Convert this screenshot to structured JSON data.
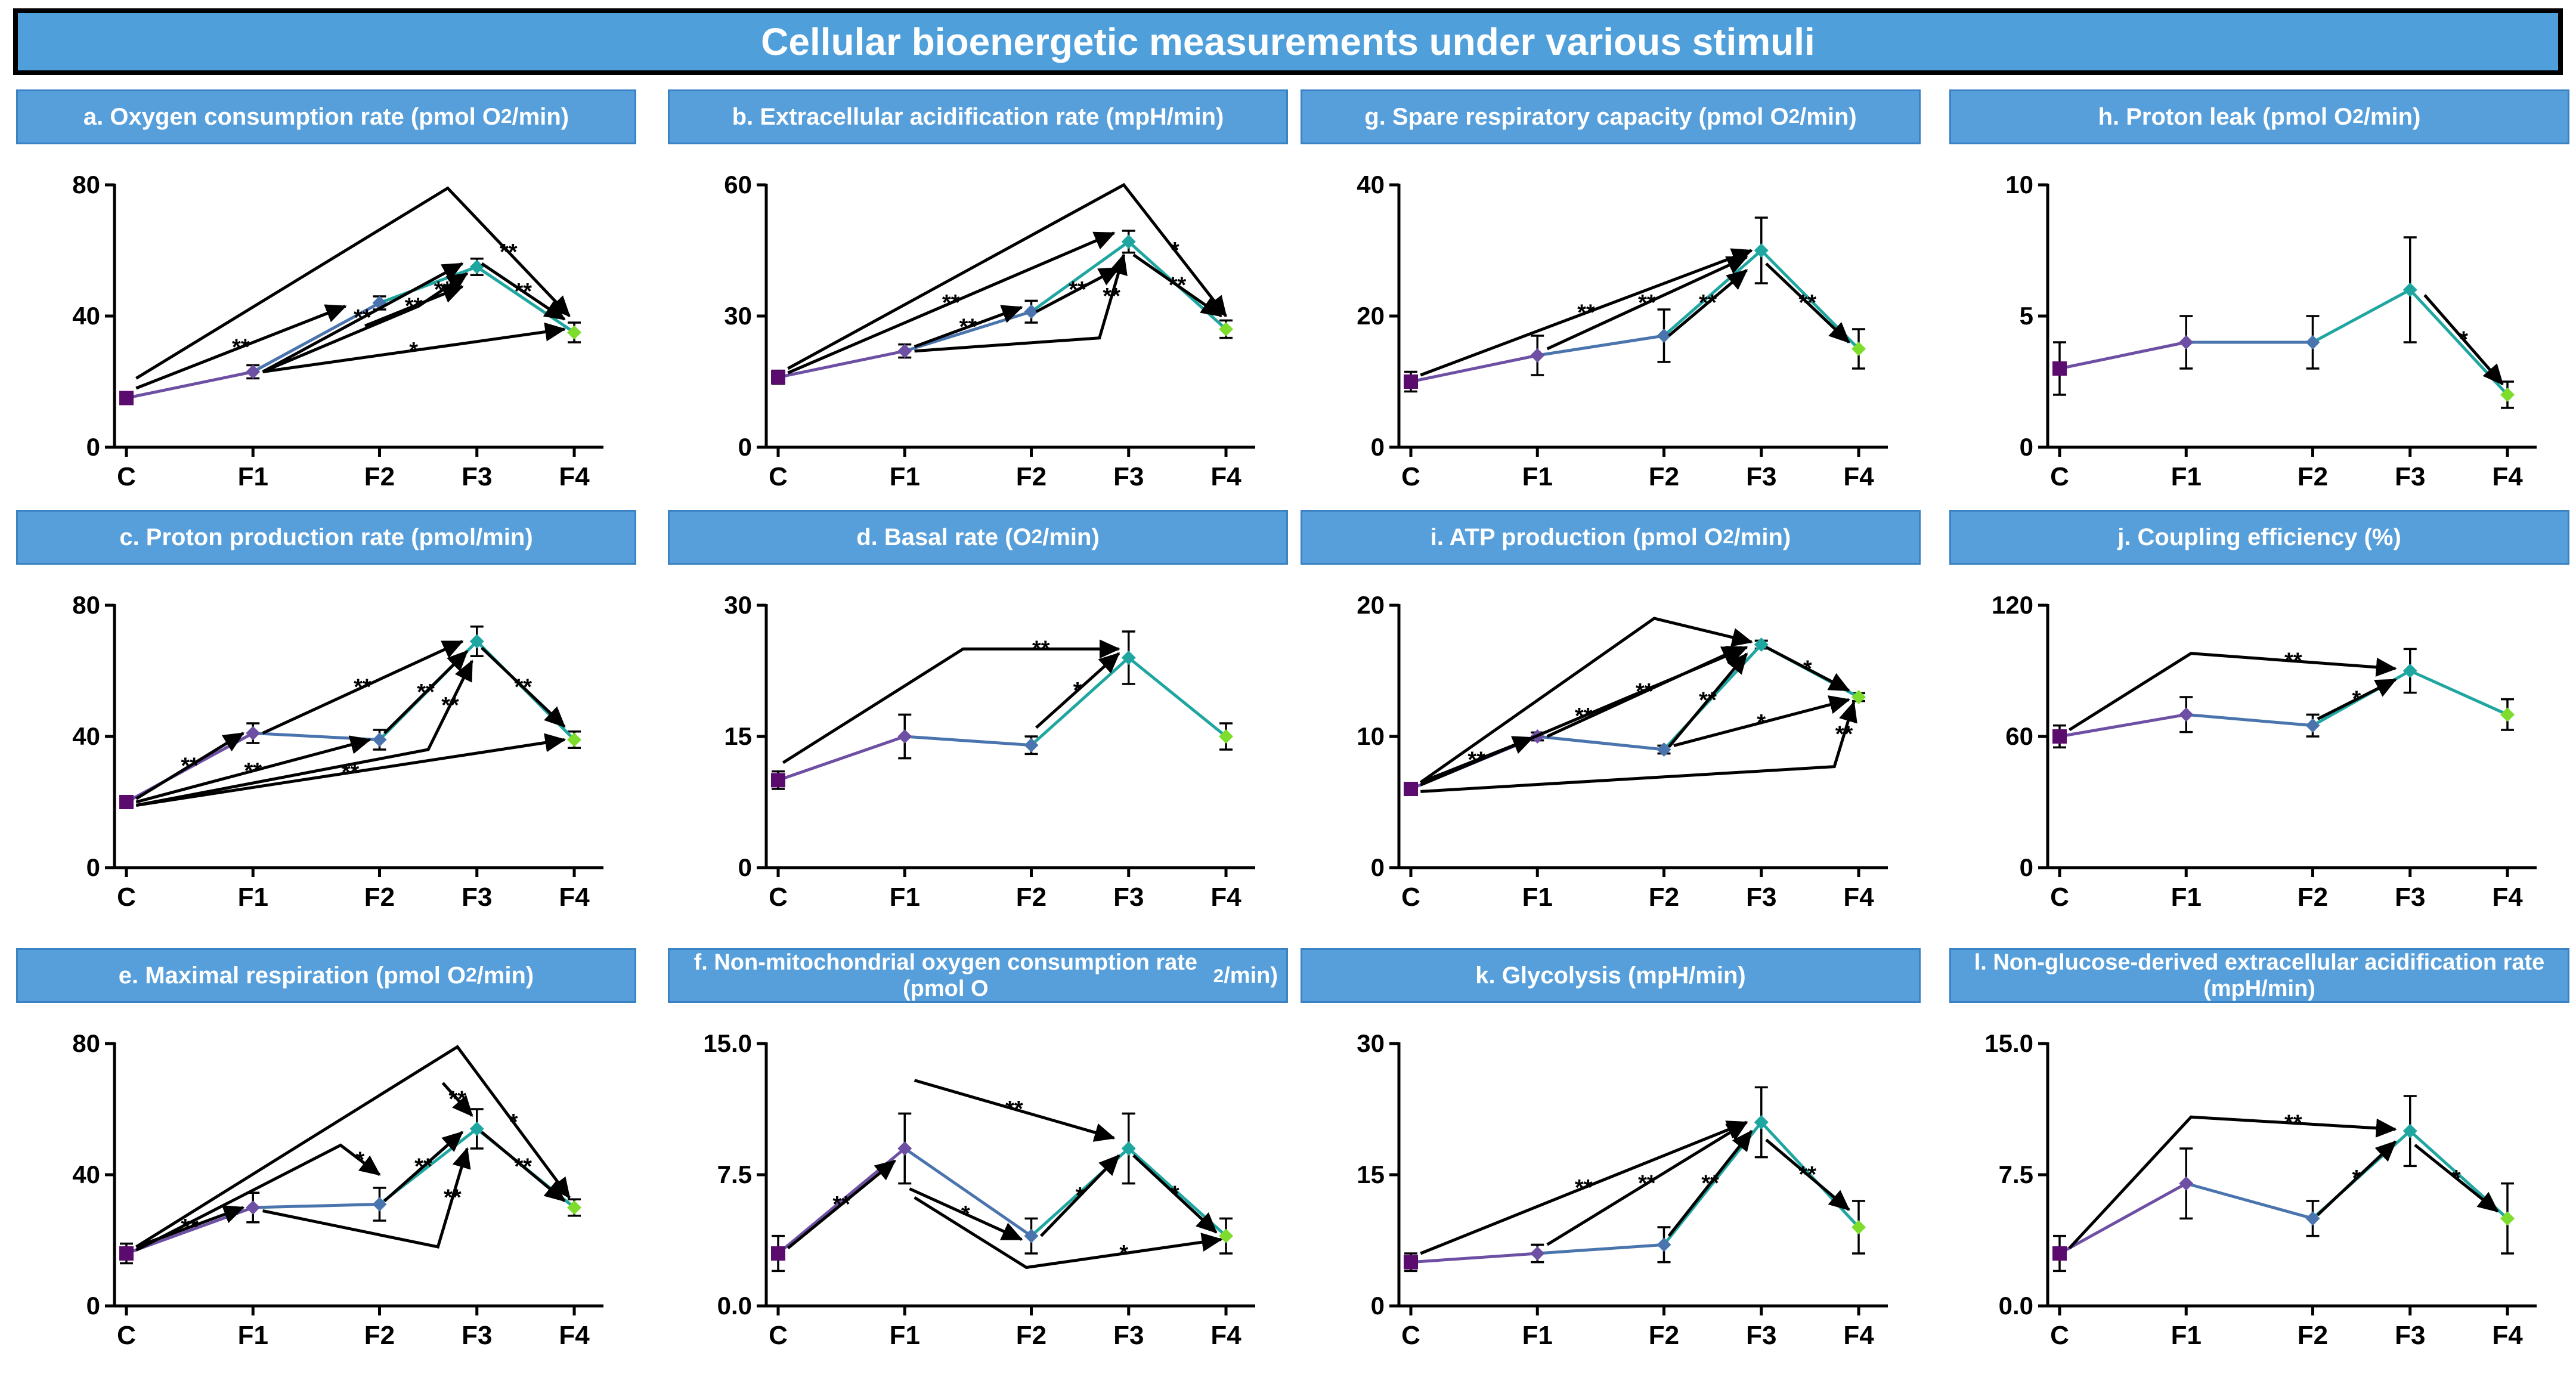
{
  "title": "Cellular bioenergetic measurements under various stimuli",
  "colors": {
    "banner": "#4f9fdb",
    "panel_title": "#569fdb",
    "C": "#5b0a6e",
    "F1": "#6d4fa3",
    "F2": "#4a74ad",
    "F3": "#1fa6a0",
    "F4": "#7ddc2c",
    "arrow": "#000000"
  },
  "chart_data": [
    {
      "id": "a",
      "type": "line",
      "title_html": "a. Oxygen consumption rate (pmol O<sub>2</sub>/min)",
      "categories": [
        "C",
        "F1",
        "F2",
        "F3",
        "F4"
      ],
      "x": [
        0,
        1.3,
        2.6,
        3.6,
        4.6
      ],
      "values": [
        15,
        23,
        44,
        55,
        35
      ],
      "errors": [
        1.5,
        2,
        2,
        2.5,
        3
      ],
      "ylim": [
        0,
        80
      ],
      "yticks": [
        0,
        40,
        80
      ],
      "ytick_labels": [
        "0",
        "40",
        "80"
      ],
      "annotations": [
        {
          "from": [
            0.1,
            21
          ],
          "via": [
            3.3,
            79
          ],
          "to": [
            4.55,
            40
          ],
          "label": "**"
        },
        {
          "from": [
            0.1,
            18
          ],
          "to": [
            2.25,
            43
          ],
          "label": "**"
        },
        {
          "from": [
            1.4,
            23
          ],
          "via": [
            3.0,
            43
          ],
          "to": [
            3.5,
            53
          ],
          "label": "**"
        },
        {
          "from": [
            1.4,
            23
          ],
          "to": [
            3.45,
            56
          ],
          "label": "**"
        },
        {
          "from": [
            1.4,
            23
          ],
          "to": [
            4.5,
            36
          ],
          "label": "*"
        },
        {
          "from": [
            2.45,
            37
          ],
          "to": [
            3.45,
            49
          ],
          "label": "**"
        },
        {
          "from": [
            3.65,
            56
          ],
          "to": [
            4.5,
            39
          ],
          "label": "**"
        }
      ]
    },
    {
      "id": "b",
      "type": "line",
      "title_html": "b. Extracellular acidification rate (mpH/min)",
      "categories": [
        "C",
        "F1",
        "F2",
        "F3",
        "F4"
      ],
      "x": [
        0,
        1.3,
        2.6,
        3.6,
        4.6
      ],
      "values": [
        16,
        22,
        31,
        47,
        27
      ],
      "errors": [
        1.5,
        1.5,
        2.5,
        2.5,
        2
      ],
      "ylim": [
        0,
        60
      ],
      "yticks": [
        0,
        30,
        60
      ],
      "ytick_labels": [
        "0",
        "30",
        "60"
      ],
      "annotations": [
        {
          "from": [
            0.1,
            18
          ],
          "via": [
            3.55,
            60
          ],
          "to": [
            4.6,
            30
          ],
          "label": "*"
        },
        {
          "from": [
            0.1,
            17
          ],
          "to": [
            3.45,
            49
          ],
          "label": "**"
        },
        {
          "from": [
            1.4,
            23
          ],
          "to": [
            2.5,
            32
          ],
          "label": "**"
        },
        {
          "from": [
            1.4,
            22
          ],
          "via": [
            3.3,
            25
          ],
          "to": [
            3.55,
            44
          ],
          "label": "**"
        },
        {
          "from": [
            2.65,
            31
          ],
          "to": [
            3.5,
            41
          ],
          "label": "**"
        },
        {
          "from": [
            3.65,
            44
          ],
          "to": [
            4.55,
            30
          ],
          "label": "**"
        }
      ]
    },
    {
      "id": "g",
      "type": "line",
      "title_html": "g. Spare respiratory capacity (pmol O<sub>2</sub>/min)",
      "categories": [
        "C",
        "F1",
        "F2",
        "F3",
        "F4"
      ],
      "x": [
        0,
        1.3,
        2.6,
        3.6,
        4.6
      ],
      "values": [
        10,
        14,
        17,
        30,
        15
      ],
      "errors": [
        1.5,
        3,
        4,
        5,
        3
      ],
      "ylim": [
        0,
        40
      ],
      "yticks": [
        0,
        20,
        40
      ],
      "ytick_labels": [
        "0",
        "20",
        "40"
      ],
      "annotations": [
        {
          "from": [
            0.1,
            11
          ],
          "to": [
            3.5,
            30
          ],
          "label": "**"
        },
        {
          "from": [
            1.4,
            15
          ],
          "to": [
            3.45,
            29
          ],
          "label": "**"
        },
        {
          "from": [
            2.65,
            17
          ],
          "to": [
            3.45,
            27
          ],
          "label": "**"
        },
        {
          "from": [
            3.65,
            28
          ],
          "to": [
            4.5,
            16
          ],
          "label": "**"
        }
      ]
    },
    {
      "id": "h",
      "type": "line",
      "title_html": "h. Proton leak (pmol O<sub>2</sub>/min)",
      "categories": [
        "C",
        "F1",
        "F2",
        "F3",
        "F4"
      ],
      "x": [
        0,
        1.3,
        2.6,
        3.6,
        4.6
      ],
      "values": [
        3,
        4,
        4,
        6,
        2
      ],
      "errors": [
        1,
        1,
        1,
        2,
        0.5
      ],
      "ylim": [
        0,
        10
      ],
      "yticks": [
        0,
        5,
        10
      ],
      "ytick_labels": [
        "0",
        "5",
        "10"
      ],
      "annotations": [
        {
          "from": [
            3.75,
            5.8
          ],
          "to": [
            4.55,
            2.4
          ],
          "label": "*"
        }
      ]
    },
    {
      "id": "c",
      "type": "line",
      "title_html": "c. Proton production rate (pmol/min)",
      "categories": [
        "C",
        "F1",
        "F2",
        "F3",
        "F4"
      ],
      "x": [
        0,
        1.3,
        2.6,
        3.6,
        4.6
      ],
      "values": [
        20,
        41,
        39,
        69,
        39
      ],
      "errors": [
        1.5,
        3,
        3,
        4.5,
        2.5
      ],
      "ylim": [
        0,
        80
      ],
      "yticks": [
        0,
        40,
        80
      ],
      "ytick_labels": [
        "0",
        "40",
        "80"
      ],
      "annotations": [
        {
          "from": [
            0.1,
            21
          ],
          "to": [
            1.2,
            41
          ],
          "label": "**"
        },
        {
          "from": [
            0.1,
            20
          ],
          "to": [
            2.5,
            39
          ],
          "label": "**"
        },
        {
          "from": [
            0.1,
            19
          ],
          "via": [
            3.1,
            36
          ],
          "to": [
            3.55,
            63
          ],
          "label": "**"
        },
        {
          "from": [
            0.1,
            19
          ],
          "to": [
            4.5,
            39
          ],
          "label": "**"
        },
        {
          "from": [
            1.4,
            41
          ],
          "to": [
            3.45,
            69
          ],
          "label": "**"
        },
        {
          "from": [
            2.65,
            41
          ],
          "to": [
            3.5,
            66
          ],
          "label": "**"
        },
        {
          "from": [
            3.65,
            67
          ],
          "to": [
            4.5,
            43
          ],
          "label": "**"
        }
      ]
    },
    {
      "id": "d",
      "type": "line",
      "title_html": "d. Basal rate (O<sub>2</sub>/min)",
      "categories": [
        "C",
        "F1",
        "F2",
        "F3",
        "F4"
      ],
      "x": [
        0,
        1.3,
        2.6,
        3.6,
        4.6
      ],
      "values": [
        10,
        15,
        14,
        24,
        15
      ],
      "errors": [
        1,
        2.5,
        1,
        3,
        1.5
      ],
      "ylim": [
        0,
        30
      ],
      "yticks": [
        0,
        15,
        30
      ],
      "ytick_labels": [
        "0",
        "15",
        "30"
      ],
      "annotations": [
        {
          "from": [
            0.05,
            12
          ],
          "via": [
            1.9,
            25
          ],
          "to": [
            3.5,
            25
          ],
          "label": "**"
        },
        {
          "from": [
            2.65,
            16
          ],
          "to": [
            3.5,
            24.5
          ],
          "label": "*"
        }
      ]
    },
    {
      "id": "i",
      "type": "line",
      "title_html": "i. ATP production (pmol O<sub>2</sub>/min)",
      "categories": [
        "C",
        "F1",
        "F2",
        "F3",
        "F4"
      ],
      "x": [
        0,
        1.3,
        2.6,
        3.6,
        4.6
      ],
      "values": [
        6,
        10,
        9,
        17,
        13
      ],
      "errors": [
        0.3,
        0.3,
        0.3,
        0.3,
        0.3
      ],
      "ylim": [
        0,
        20
      ],
      "yticks": [
        0,
        10,
        20
      ],
      "ytick_labels": [
        "0",
        "10",
        "20"
      ],
      "annotations": [
        {
          "from": [
            0.1,
            6.5
          ],
          "to": [
            1.25,
            9.9
          ],
          "label": "**"
        },
        {
          "from": [
            0.1,
            6.5
          ],
          "via": [
            2.5,
            19
          ],
          "to": [
            3.5,
            17.2
          ],
          "label": ""
        },
        {
          "from": [
            0.1,
            6.3
          ],
          "to": [
            3.45,
            16.8
          ],
          "label": "**"
        },
        {
          "from": [
            0.1,
            5.8
          ],
          "via": [
            4.35,
            7.7
          ],
          "to": [
            4.55,
            12.6
          ],
          "label": "**"
        },
        {
          "from": [
            1.4,
            10
          ],
          "to": [
            3.4,
            16.8
          ],
          "label": "**"
        },
        {
          "from": [
            2.65,
            9.2
          ],
          "to": [
            3.45,
            16.3
          ],
          "label": "**"
        },
        {
          "from": [
            2.7,
            9.3
          ],
          "to": [
            4.5,
            12.8
          ],
          "label": "*"
        },
        {
          "from": [
            3.65,
            16.8
          ],
          "to": [
            4.5,
            13.5
          ],
          "label": "*"
        }
      ]
    },
    {
      "id": "j",
      "type": "line",
      "title_html": "j. Coupling efficiency (%)",
      "categories": [
        "C",
        "F1",
        "F2",
        "F3",
        "F4"
      ],
      "x": [
        0,
        1.3,
        2.6,
        3.6,
        4.6
      ],
      "values": [
        60,
        70,
        65,
        90,
        70
      ],
      "errors": [
        5,
        8,
        5,
        10,
        7
      ],
      "ylim": [
        0,
        120
      ],
      "yticks": [
        0,
        60,
        120
      ],
      "ytick_labels": [
        "0",
        "60",
        "120"
      ],
      "annotations": [
        {
          "from": [
            0.1,
            63
          ],
          "via": [
            1.35,
            98
          ],
          "to": [
            3.45,
            91
          ],
          "label": "**"
        },
        {
          "from": [
            2.65,
            68
          ],
          "to": [
            3.45,
            86
          ],
          "label": "*"
        }
      ]
    },
    {
      "id": "e",
      "type": "line",
      "title_html": "e. Maximal respiration (pmol O<sub>2</sub>/min)",
      "categories": [
        "C",
        "F1",
        "F2",
        "F3",
        "F4"
      ],
      "x": [
        0,
        1.3,
        2.6,
        3.6,
        4.6
      ],
      "values": [
        16,
        30,
        31,
        54,
        30
      ],
      "errors": [
        3,
        4.5,
        5,
        6,
        2.5
      ],
      "ylim": [
        0,
        80
      ],
      "yticks": [
        0,
        40,
        80
      ],
      "ytick_labels": [
        "0",
        "40",
        "80"
      ],
      "annotations": [
        {
          "from": [
            0.1,
            18
          ],
          "via": [
            3.4,
            79
          ],
          "to": [
            4.55,
            33
          ],
          "label": "*"
        },
        {
          "from": [
            0.1,
            18
          ],
          "to": [
            1.2,
            30
          ],
          "label": "**"
        },
        {
          "from": [
            0.1,
            17
          ],
          "via": [
            2.2,
            49
          ],
          "to": [
            2.6,
            40
          ],
          "label": "*"
        },
        {
          "from": [
            1.4,
            29
          ],
          "via": [
            3.2,
            18
          ],
          "to": [
            3.5,
            48
          ],
          "label": "**"
        },
        {
          "from": [
            2.65,
            32
          ],
          "to": [
            3.45,
            53
          ],
          "label": "**"
        },
        {
          "from": [
            3.25,
            68
          ],
          "to": [
            3.55,
            58
          ],
          "label": "**"
        },
        {
          "from": [
            3.65,
            53
          ],
          "to": [
            4.5,
            32
          ],
          "label": "**"
        }
      ]
    },
    {
      "id": "f",
      "type": "line",
      "title_html": "f. Non-mitochondrial oxygen consumption rate (pmol O<sub>2</sub>/min)",
      "categories": [
        "C",
        "F1",
        "F2",
        "F3",
        "F4"
      ],
      "x": [
        0,
        1.3,
        2.6,
        3.6,
        4.6
      ],
      "values": [
        3,
        9,
        4,
        9,
        4
      ],
      "errors": [
        1,
        2,
        1,
        2,
        1
      ],
      "ylim": [
        0,
        15
      ],
      "yticks": [
        0,
        7.5,
        15
      ],
      "ytick_labels": [
        "0.0",
        "7.5",
        "15.0"
      ],
      "annotations": [
        {
          "from": [
            0.1,
            3.3
          ],
          "to": [
            1.2,
            8.3
          ],
          "label": "**"
        },
        {
          "from": [
            1.4,
            12.9
          ],
          "to": [
            3.45,
            9.6
          ],
          "label": "**"
        },
        {
          "from": [
            1.35,
            6.7
          ],
          "to": [
            2.5,
            3.8
          ],
          "label": "*"
        },
        {
          "from": [
            1.4,
            6.2
          ],
          "via": [
            2.55,
            2.2
          ],
          "to": [
            4.55,
            3.8
          ],
          "label": "*"
        },
        {
          "from": [
            2.7,
            4
          ],
          "to": [
            3.5,
            8.6
          ],
          "label": "*"
        },
        {
          "from": [
            3.65,
            8.6
          ],
          "to": [
            4.5,
            4.2
          ],
          "label": "*"
        }
      ]
    },
    {
      "id": "k",
      "type": "line",
      "title_html": "k. Glycolysis (mpH/min)",
      "categories": [
        "C",
        "F1",
        "F2",
        "F3",
        "F4"
      ],
      "x": [
        0,
        1.3,
        2.6,
        3.6,
        4.6
      ],
      "values": [
        5,
        6,
        7,
        21,
        9
      ],
      "errors": [
        1,
        1,
        2,
        4,
        3
      ],
      "ylim": [
        0,
        30
      ],
      "yticks": [
        0,
        15,
        30
      ],
      "ytick_labels": [
        "0",
        "15",
        "30"
      ],
      "annotations": [
        {
          "from": [
            0.1,
            6
          ],
          "to": [
            3.45,
            21
          ],
          "label": "**"
        },
        {
          "from": [
            1.4,
            7
          ],
          "to": [
            3.45,
            21
          ],
          "label": "**"
        },
        {
          "from": [
            2.65,
            8
          ],
          "to": [
            3.5,
            20
          ],
          "label": "**"
        },
        {
          "from": [
            3.65,
            19
          ],
          "to": [
            4.5,
            11
          ],
          "label": "**"
        }
      ]
    },
    {
      "id": "l",
      "type": "line",
      "title_html": "l. Non-glucose-derived extracellular acidification rate (mpH/min)",
      "categories": [
        "C",
        "F1",
        "F2",
        "F3",
        "F4"
      ],
      "x": [
        0,
        1.3,
        2.6,
        3.6,
        4.6
      ],
      "values": [
        3,
        7,
        5,
        10,
        5
      ],
      "errors": [
        1,
        2,
        1,
        2,
        2
      ],
      "ylim": [
        0,
        15
      ],
      "yticks": [
        0,
        7.5,
        15
      ],
      "ytick_labels": [
        "0.0",
        "7.5",
        "15.0"
      ],
      "annotations": [
        {
          "from": [
            0.1,
            3.3
          ],
          "via": [
            1.35,
            10.8
          ],
          "to": [
            3.45,
            10.1
          ],
          "label": "**"
        },
        {
          "from": [
            2.65,
            5.2
          ],
          "to": [
            3.45,
            9.4
          ],
          "label": "*"
        },
        {
          "from": [
            3.65,
            9.2
          ],
          "to": [
            4.5,
            5.4
          ],
          "label": "*"
        }
      ]
    }
  ]
}
